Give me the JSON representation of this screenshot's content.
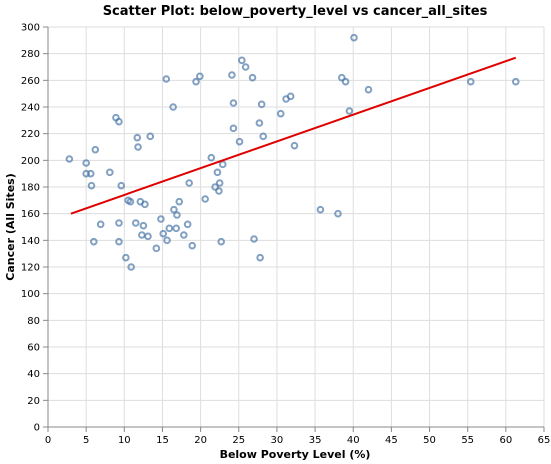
{
  "chart_data": {
    "type": "scatter",
    "title": "Scatter Plot: below_poverty_level vs cancer_all_sites",
    "xlabel": "Below Poverty Level (%)",
    "ylabel": "Cancer (All Sites)",
    "xlim": [
      0,
      65
    ],
    "ylim": [
      0,
      300
    ],
    "xticks": [
      0,
      5,
      10,
      15,
      20,
      25,
      30,
      35,
      40,
      45,
      50,
      55,
      60,
      65
    ],
    "yticks": [
      0,
      20,
      40,
      60,
      80,
      100,
      120,
      140,
      160,
      180,
      200,
      220,
      240,
      260,
      280,
      300
    ],
    "grid": true,
    "point_color": "#4c78a8",
    "trend_color": "#e00000",
    "trendline": {
      "x": [
        3.0,
        61.3
      ],
      "y": [
        160,
        277
      ]
    },
    "points": [
      {
        "x": 2.8,
        "y": 201
      },
      {
        "x": 5.0,
        "y": 198
      },
      {
        "x": 5.0,
        "y": 190
      },
      {
        "x": 5.6,
        "y": 190
      },
      {
        "x": 5.7,
        "y": 181
      },
      {
        "x": 6.0,
        "y": 139
      },
      {
        "x": 6.2,
        "y": 208
      },
      {
        "x": 6.9,
        "y": 152
      },
      {
        "x": 8.1,
        "y": 191
      },
      {
        "x": 8.9,
        "y": 232
      },
      {
        "x": 9.3,
        "y": 229
      },
      {
        "x": 9.3,
        "y": 153
      },
      {
        "x": 9.3,
        "y": 139
      },
      {
        "x": 9.6,
        "y": 181
      },
      {
        "x": 10.2,
        "y": 127
      },
      {
        "x": 10.5,
        "y": 170
      },
      {
        "x": 10.8,
        "y": 169
      },
      {
        "x": 10.9,
        "y": 120
      },
      {
        "x": 11.5,
        "y": 153
      },
      {
        "x": 11.7,
        "y": 217
      },
      {
        "x": 11.8,
        "y": 210
      },
      {
        "x": 12.1,
        "y": 169
      },
      {
        "x": 12.3,
        "y": 144
      },
      {
        "x": 12.5,
        "y": 151
      },
      {
        "x": 12.7,
        "y": 167
      },
      {
        "x": 13.1,
        "y": 143
      },
      {
        "x": 13.4,
        "y": 218
      },
      {
        "x": 14.2,
        "y": 134
      },
      {
        "x": 14.8,
        "y": 156
      },
      {
        "x": 15.1,
        "y": 145
      },
      {
        "x": 15.5,
        "y": 261
      },
      {
        "x": 15.6,
        "y": 140
      },
      {
        "x": 15.9,
        "y": 149
      },
      {
        "x": 16.4,
        "y": 240
      },
      {
        "x": 16.5,
        "y": 163
      },
      {
        "x": 16.8,
        "y": 149
      },
      {
        "x": 16.9,
        "y": 159
      },
      {
        "x": 17.2,
        "y": 169
      },
      {
        "x": 17.8,
        "y": 144
      },
      {
        "x": 18.3,
        "y": 152
      },
      {
        "x": 18.5,
        "y": 183
      },
      {
        "x": 18.9,
        "y": 136
      },
      {
        "x": 19.4,
        "y": 259
      },
      {
        "x": 19.9,
        "y": 263
      },
      {
        "x": 20.6,
        "y": 171
      },
      {
        "x": 21.4,
        "y": 202
      },
      {
        "x": 21.9,
        "y": 180
      },
      {
        "x": 22.2,
        "y": 191
      },
      {
        "x": 22.4,
        "y": 177
      },
      {
        "x": 22.5,
        "y": 183
      },
      {
        "x": 22.7,
        "y": 139
      },
      {
        "x": 22.9,
        "y": 197
      },
      {
        "x": 24.1,
        "y": 264
      },
      {
        "x": 24.3,
        "y": 243
      },
      {
        "x": 24.3,
        "y": 224
      },
      {
        "x": 25.1,
        "y": 214
      },
      {
        "x": 25.4,
        "y": 275
      },
      {
        "x": 25.9,
        "y": 270
      },
      {
        "x": 26.8,
        "y": 262
      },
      {
        "x": 27.0,
        "y": 141
      },
      {
        "x": 27.7,
        "y": 228
      },
      {
        "x": 27.8,
        "y": 127
      },
      {
        "x": 28.0,
        "y": 242
      },
      {
        "x": 28.2,
        "y": 218
      },
      {
        "x": 30.5,
        "y": 235
      },
      {
        "x": 31.2,
        "y": 246
      },
      {
        "x": 31.8,
        "y": 248
      },
      {
        "x": 32.3,
        "y": 211
      },
      {
        "x": 35.7,
        "y": 163
      },
      {
        "x": 38.0,
        "y": 160
      },
      {
        "x": 38.5,
        "y": 262
      },
      {
        "x": 39.0,
        "y": 259
      },
      {
        "x": 39.5,
        "y": 237
      },
      {
        "x": 40.1,
        "y": 292
      },
      {
        "x": 42.0,
        "y": 253
      },
      {
        "x": 55.4,
        "y": 259
      },
      {
        "x": 61.3,
        "y": 259
      }
    ]
  }
}
